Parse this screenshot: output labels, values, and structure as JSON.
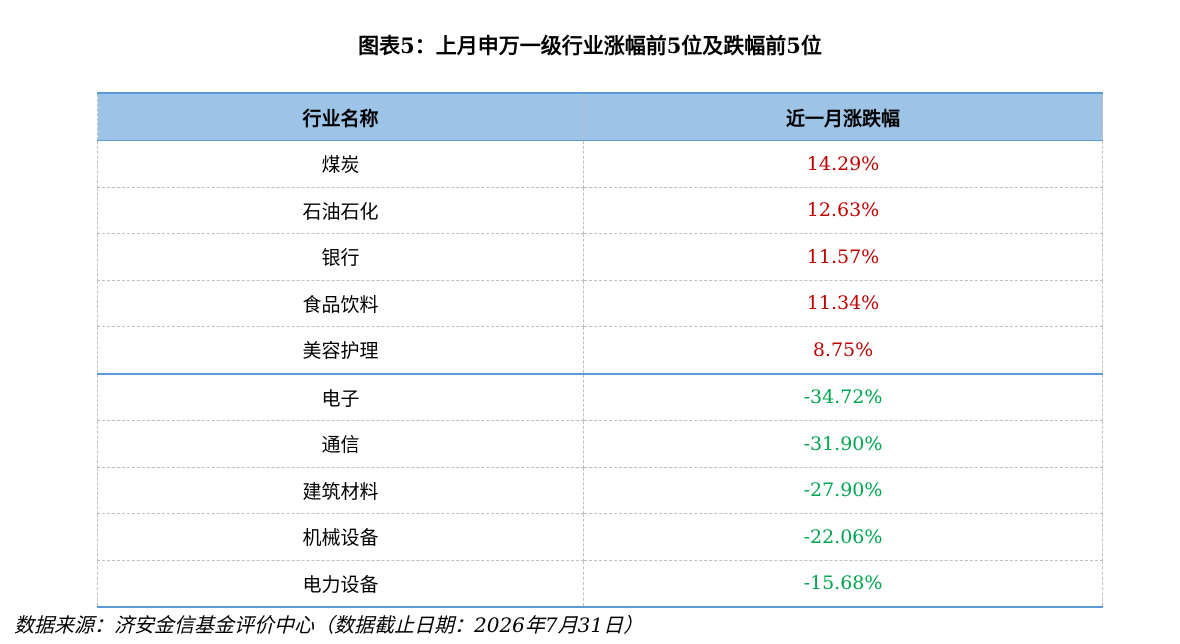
{
  "title": "图表5：上月申万一级行业涨幅前5位及跌幅前5位",
  "table": {
    "header": [
      "行业名称",
      "近一月涨跌幅"
    ],
    "groups": [
      {
        "color": "#c00000",
        "rows": [
          [
            "煤炭",
            "14.29%"
          ],
          [
            "石油石化",
            "12.63%"
          ],
          [
            "银行",
            "11.57%"
          ],
          [
            "食品饮料",
            "11.34%"
          ],
          [
            "美容护理",
            "8.75%"
          ]
        ]
      },
      {
        "color": "#00a550",
        "rows": [
          [
            "电子",
            "-34.72%"
          ],
          [
            "通信",
            "-31.90%"
          ],
          [
            "建筑材料",
            "-27.90%"
          ],
          [
            "机械设备",
            "-22.06%"
          ],
          [
            "电力设备",
            "-15.68%"
          ]
        ]
      }
    ]
  },
  "source": "数据来源：济安金信基金评价中心（数据截止日期：2026年7月31日）"
}
